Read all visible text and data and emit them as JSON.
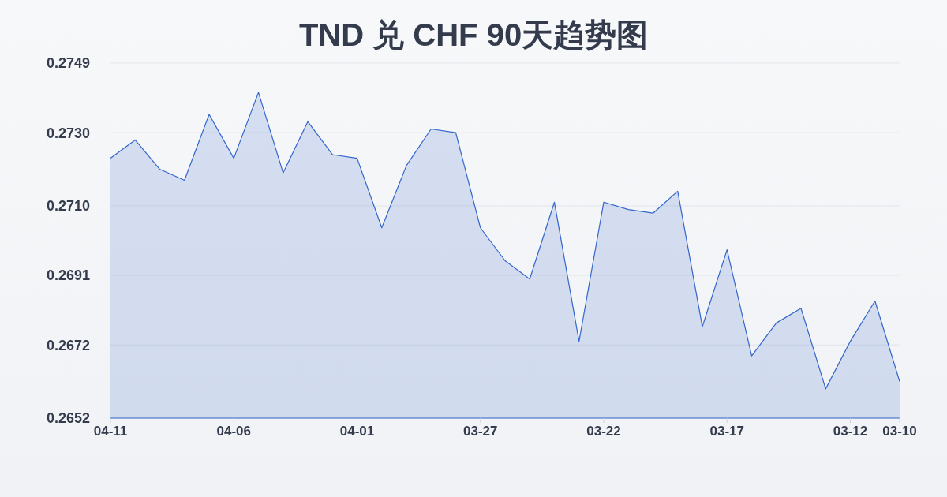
{
  "chart_data": {
    "type": "area",
    "title": "TND 兑 CHF 90天趋势图",
    "x": [
      "--04-11",
      "--04-10",
      "--04-09",
      "--04-08",
      "--04-07",
      "--04-06",
      "--04-05",
      "--04-04",
      "--04-03",
      "--04-02",
      "--04-01",
      "--03-31",
      "--03-30",
      "--03-29",
      "--03-28",
      "--03-27",
      "--03-26",
      "--03-25",
      "--03-24",
      "--03-23",
      "--03-22",
      "--03-21",
      "--03-20",
      "--03-19",
      "--03-18",
      "--03-17",
      "--03-16",
      "--03-15",
      "--03-14",
      "--03-13",
      "--03-12",
      "--03-11",
      "--03-10"
    ],
    "series": [
      {
        "color": "#3366cc",
        "values": [
          0.2723,
          0.2728,
          0.272,
          0.2717,
          0.2735,
          0.2723,
          0.2741,
          0.2719,
          0.2733,
          0.2724,
          0.2723,
          0.2704,
          0.2721,
          0.2731,
          0.273,
          0.2704,
          0.2695,
          0.269,
          0.2711,
          0.2673,
          0.2711,
          0.2709,
          0.2708,
          0.2714,
          0.2677,
          0.2698,
          0.2669,
          0.2678,
          0.2682,
          0.266,
          0.2673,
          0.2684,
          0.2662
        ]
      }
    ],
    "xlim": [
      "--04-11",
      "--03-10"
    ],
    "xticks": [
      {
        "value": "--04-11",
        "label": "04-11"
      },
      {
        "value": "--04-06",
        "label": "04-06"
      },
      {
        "value": "--04-01",
        "label": "04-01"
      },
      {
        "value": "--03-27",
        "label": "03-27"
      },
      {
        "value": "--03-22",
        "label": "03-22"
      },
      {
        "value": "--03-17",
        "label": "03-17"
      },
      {
        "value": "--03-12",
        "label": "03-12"
      },
      {
        "value": "--03-10",
        "label": "03-10"
      }
    ],
    "ylim": [
      0.2652,
      0.2749
    ],
    "yticks": [
      0.2652,
      0.2672,
      0.2691,
      {
        "value": 0.271,
        "label": "0.2710"
      },
      {
        "value": 0.273,
        "label": "0.2730"
      },
      0.2749
    ],
    "grid": "y"
  }
}
